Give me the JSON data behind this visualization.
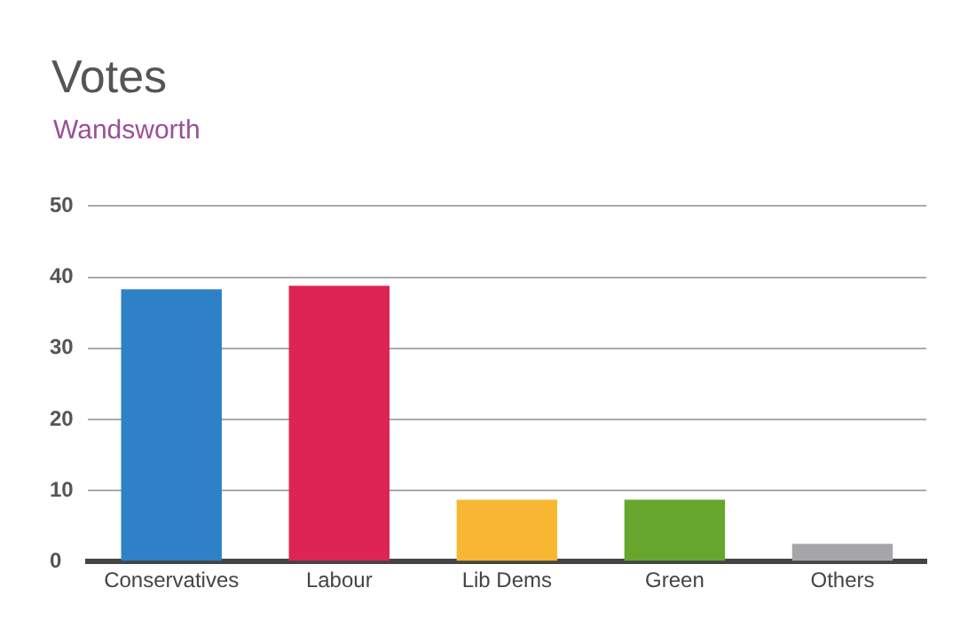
{
  "chart_data": {
    "type": "bar",
    "title": "Votes",
    "subtitle": "Wandsworth",
    "categories": [
      "Conservatives",
      "Labour",
      "Lib Dems",
      "Green",
      "Others"
    ],
    "values": [
      38.3,
      38.8,
      8.7,
      8.7,
      2.5
    ],
    "colors": [
      "#2e81c6",
      "#dc2553",
      "#f8b733",
      "#67a62c",
      "#a6a6a8"
    ],
    "ylim": [
      0,
      50
    ],
    "yticks": [
      0,
      10,
      20,
      30,
      40,
      50
    ],
    "grid": "y",
    "legend": false
  }
}
